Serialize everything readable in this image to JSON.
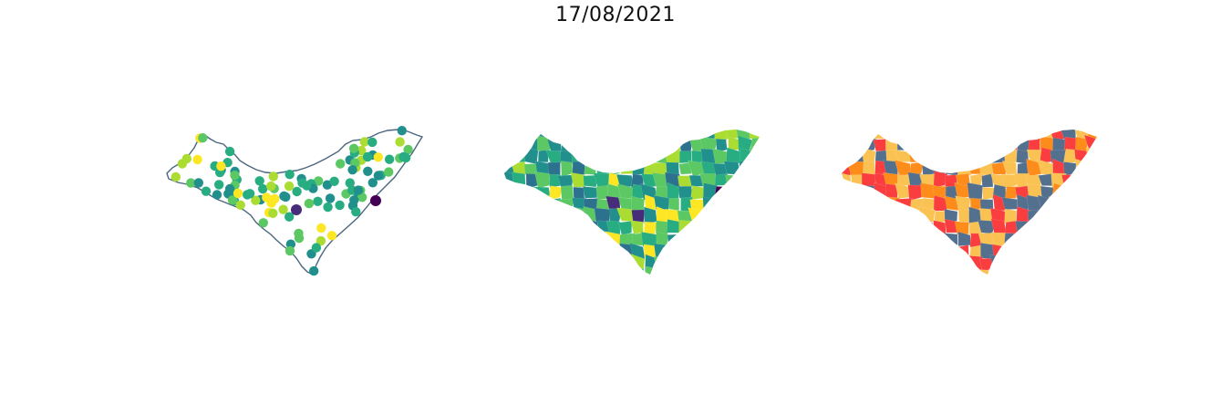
{
  "title": "17/08/2021",
  "colors": {
    "outline": "#4a6680",
    "viridis": [
      "#440154",
      "#472c7a",
      "#3b518b",
      "#2c718e",
      "#21908d",
      "#27ad81",
      "#5cc863",
      "#aadc32",
      "#fde725"
    ],
    "categories": [
      "#f9c252",
      "#fe8c1a",
      "#fa3e3f",
      "#53708f"
    ]
  },
  "panels": [
    {
      "type": "point-map"
    },
    {
      "type": "choropleth-map"
    },
    {
      "type": "category-map"
    }
  ]
}
